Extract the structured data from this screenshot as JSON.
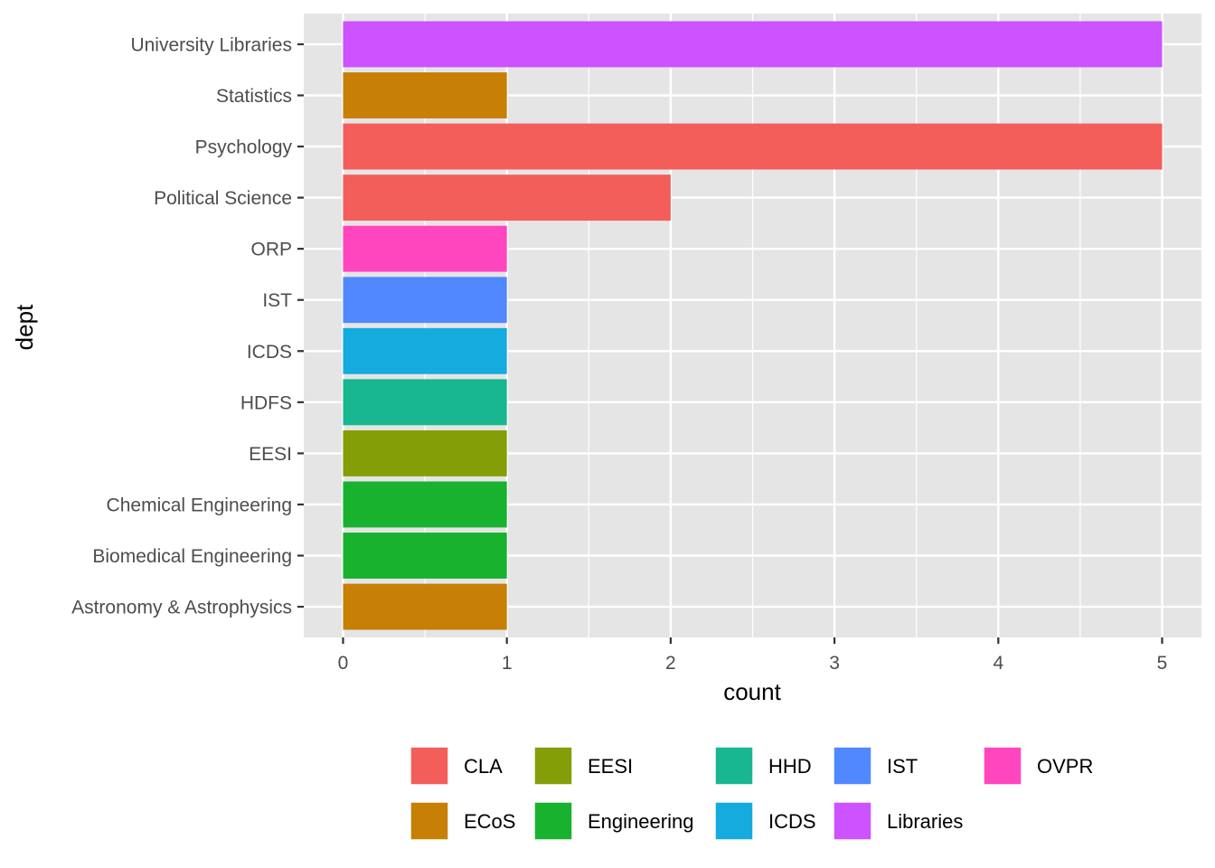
{
  "chart_data": {
    "type": "bar",
    "orientation": "horizontal",
    "xlabel": "count",
    "ylabel": "dept",
    "xlim": [
      -0.24,
      5.24
    ],
    "x_ticks": [
      0,
      1,
      2,
      3,
      4,
      5
    ],
    "grid": true,
    "legend_position": "bottom",
    "categories": [
      "University Libraries",
      "Statistics",
      "Psychology",
      "Political Science",
      "ORP",
      "IST",
      "ICDS",
      "HDFS",
      "EESI",
      "Chemical Engineering",
      "Biomedical Engineering",
      "Astronomy & Astrophysics"
    ],
    "values": [
      5,
      1,
      5,
      2,
      1,
      1,
      1,
      1,
      1,
      1,
      1,
      1
    ],
    "fill_group": [
      "Libraries",
      "ECoS",
      "CLA",
      "CLA",
      "OVPR",
      "IST",
      "ICDS",
      "HHD",
      "EESI",
      "Engineering",
      "Engineering",
      "ECoS"
    ],
    "legend": [
      {
        "name": "CLA",
        "color": "#F8766D"
      },
      {
        "name": "ECoS",
        "color": "#CD9600"
      },
      {
        "name": "EESI",
        "color": "#7CAE00"
      },
      {
        "name": "Engineering",
        "color": "#00BE67"
      },
      {
        "name": "HHD",
        "color": "#00BFC4"
      },
      {
        "name": "ICDS",
        "color": "#00A9FF"
      },
      {
        "name": "IST",
        "color": "#619CFF"
      },
      {
        "name": "Libraries",
        "color": "#C77CFF"
      },
      {
        "name": "OVPR",
        "color": "#FF61CC"
      }
    ],
    "display_colors": {
      "CLA": "#F35E5A",
      "ECoS": "#C77F05",
      "EESI": "#849E07",
      "Engineering": "#18B22F",
      "HHD": "#18B78F",
      "ICDS": "#15ABDE",
      "IST": "#5288FF",
      "Libraries": "#CC53FF",
      "OVPR": "#FF46BF"
    },
    "panel_background": "#E5E5E5",
    "gridline_color": "#FFFFFF"
  }
}
